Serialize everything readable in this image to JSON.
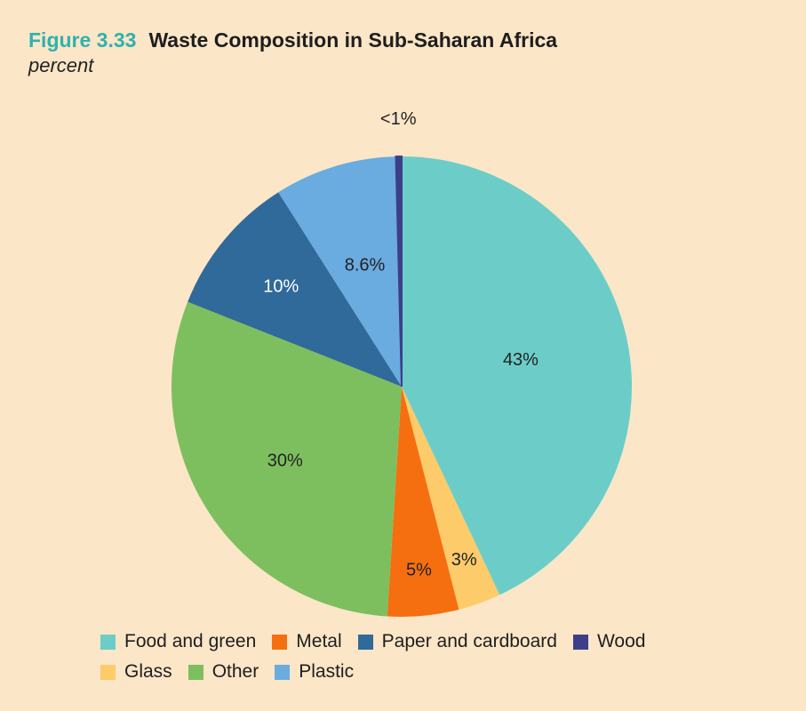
{
  "figure": {
    "number": "Figure 3.33",
    "title": "Waste Composition in Sub-Saharan Africa",
    "subtitle": "percent"
  },
  "chart_data": {
    "type": "pie",
    "title": "Waste Composition in Sub-Saharan Africa",
    "subtitle": "percent",
    "legend_placement": "bottom",
    "start_angle_deg": 0,
    "direction": "clockwise",
    "slices": [
      {
        "name": "Food and green",
        "value": 43,
        "label": "43%",
        "color": "#6ccdc8"
      },
      {
        "name": "Glass",
        "value": 3,
        "label": "3%",
        "color": "#fdcb6a"
      },
      {
        "name": "Metal",
        "value": 5,
        "label": "5%",
        "color": "#f56f10"
      },
      {
        "name": "Other",
        "value": 30,
        "label": "30%",
        "color": "#7dbf5e"
      },
      {
        "name": "Paper and cardboard",
        "value": 10,
        "label": "10%",
        "color": "#2f6a9a"
      },
      {
        "name": "Plastic",
        "value": 8.6,
        "label": "8.6%",
        "color": "#6aabe0"
      },
      {
        "name": "Wood",
        "value": 0.4,
        "label": "<1%",
        "color": "#3d3e8a"
      }
    ]
  },
  "legend": {
    "rows": [
      [
        "Food and green",
        "Metal",
        "Paper and cardboard",
        "Wood"
      ],
      [
        "Glass",
        "Other",
        "Plastic"
      ]
    ]
  }
}
